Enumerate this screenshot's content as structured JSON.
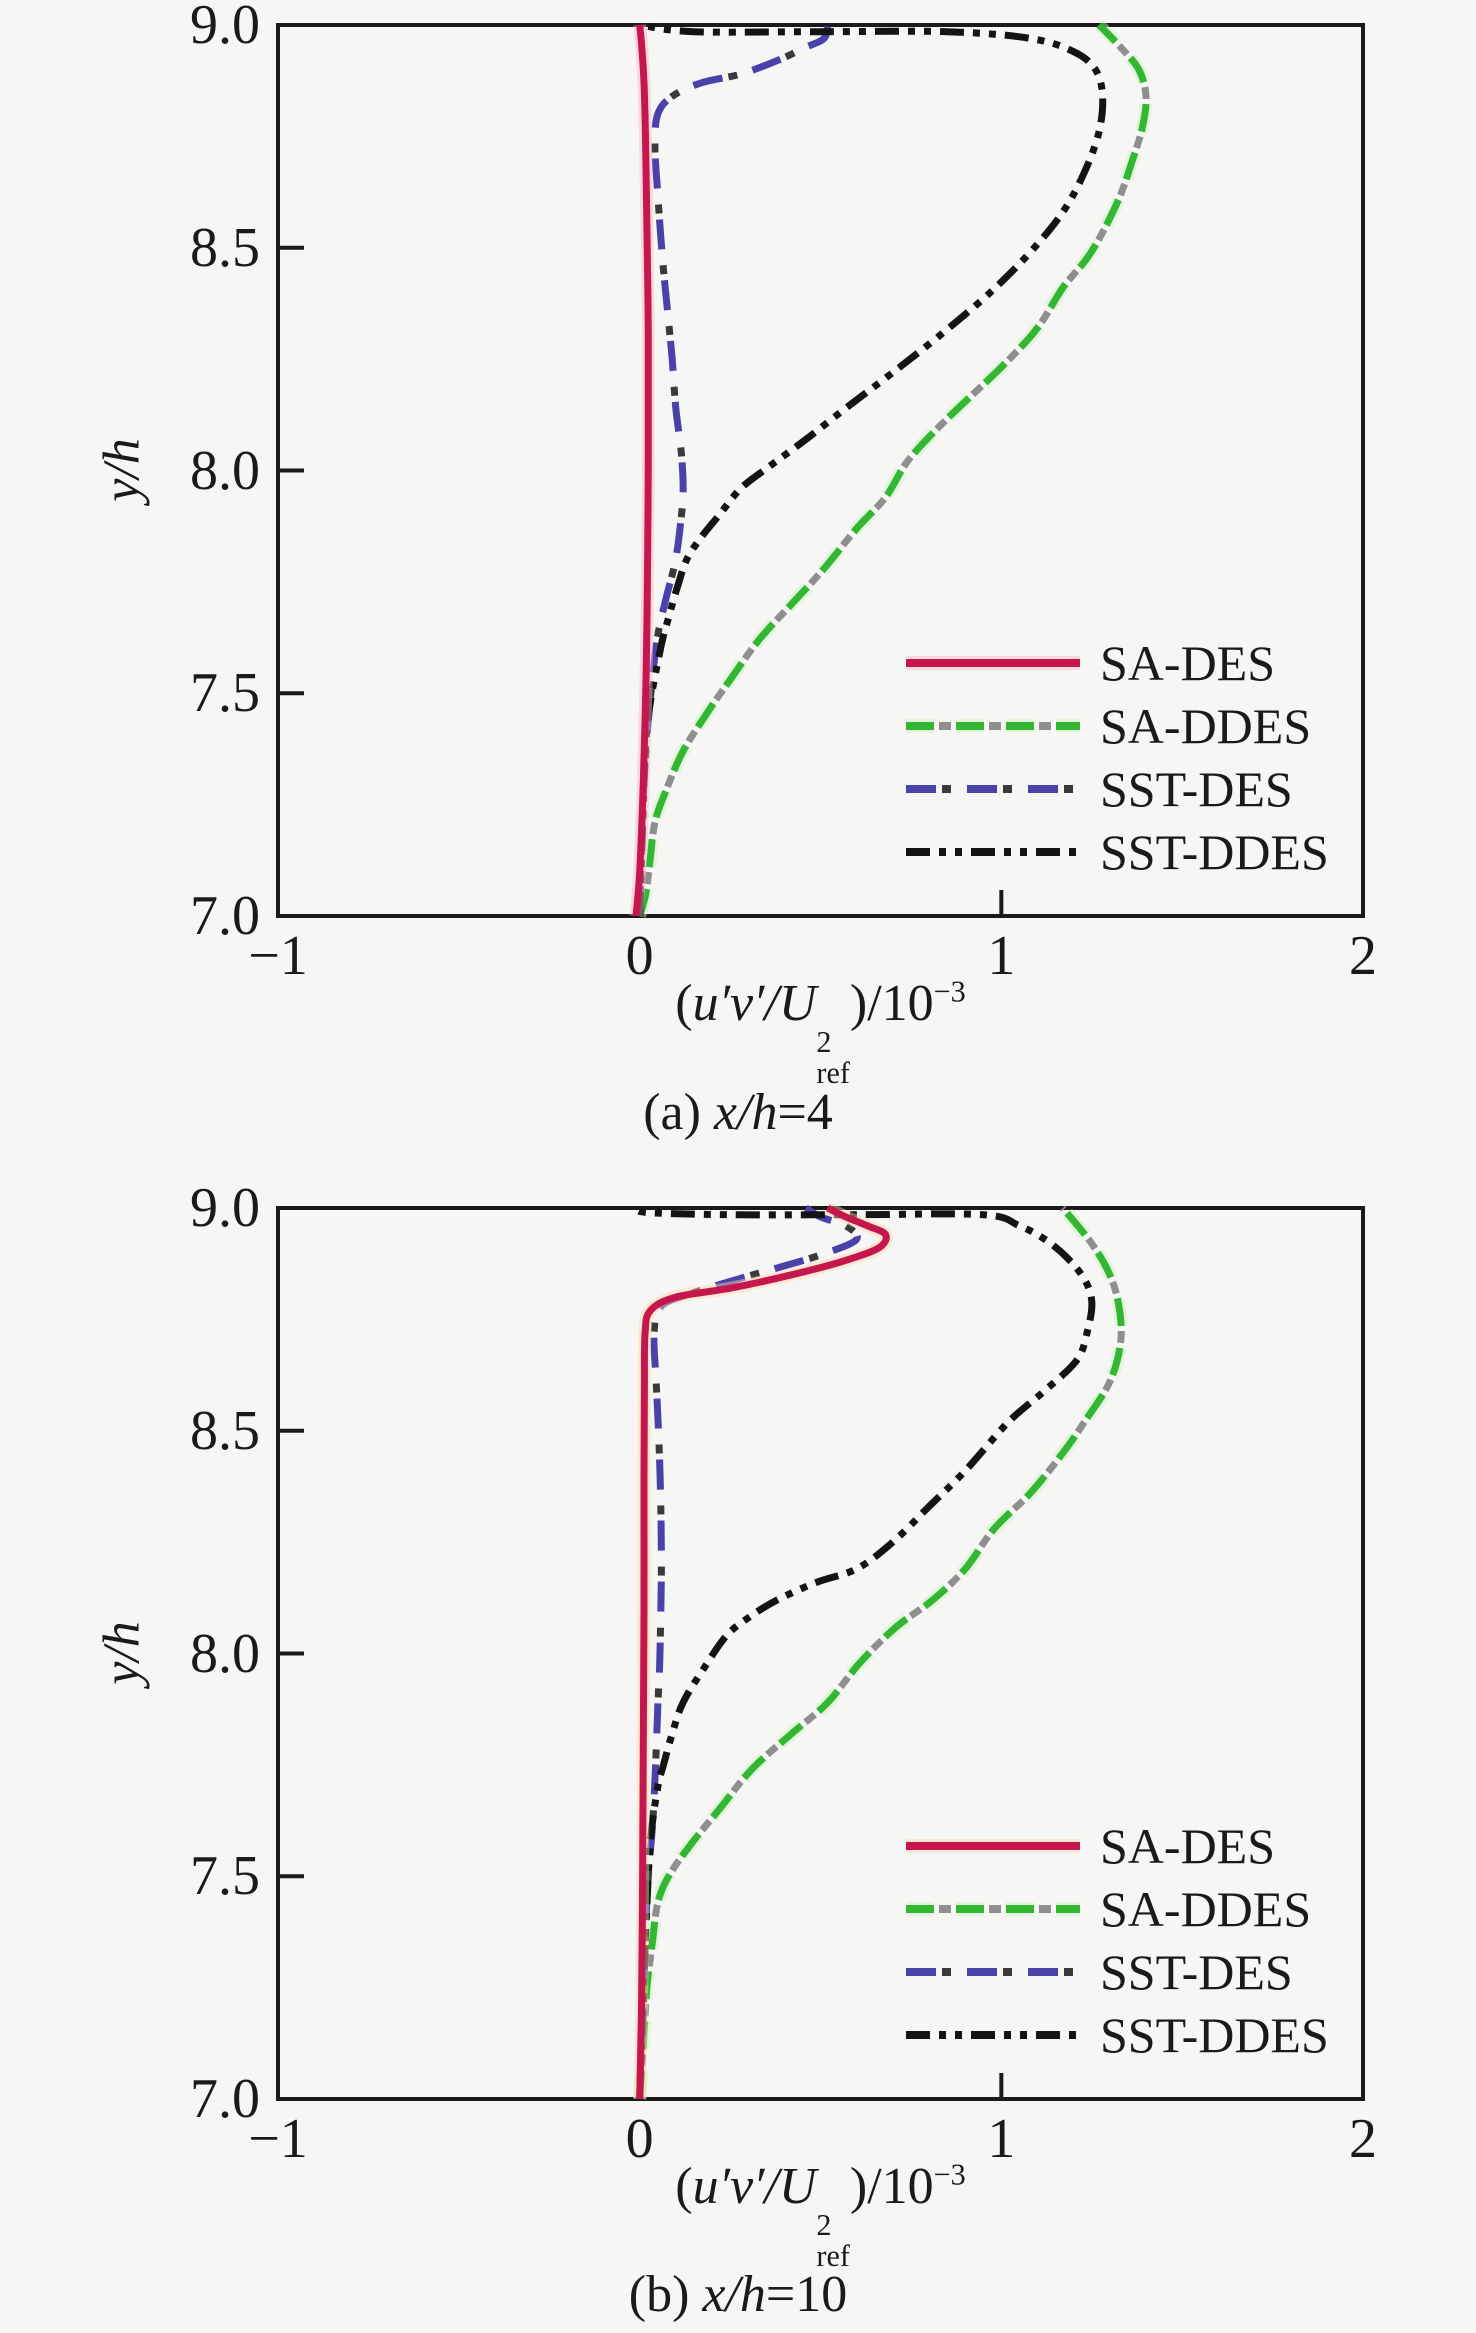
{
  "figure": {
    "background": "#f6f6f5",
    "frame_color": "#1a1a1a",
    "text_color": "#1a1a1a"
  },
  "axis_label_x": {
    "open": "(",
    "math": "u′v′/U",
    "sup": "2",
    "sub": "ref",
    "close": ")/10",
    "exp": "−3"
  },
  "chart_data": [
    {
      "type": "line",
      "panel": "a",
      "caption": {
        "index": "(a) ",
        "math": "x/h",
        "value": "=4"
      },
      "xlabel_plain": "(u′v′/U²ref)/10⁻³",
      "ylabel": "y/h",
      "xlim": [
        -1,
        2
      ],
      "ylim": [
        7.0,
        9.0
      ],
      "grid": false,
      "legend_position": "inside-right-middle",
      "xticks": [
        {
          "v": -1,
          "label": "−1"
        },
        {
          "v": 0,
          "label": "0"
        },
        {
          "v": 1,
          "label": "1"
        },
        {
          "v": 2,
          "label": "2"
        }
      ],
      "yticks": [
        {
          "v": 9.0,
          "label": "9.0"
        },
        {
          "v": 8.5,
          "label": "8.5"
        },
        {
          "v": 8.0,
          "label": "8.0"
        },
        {
          "v": 7.5,
          "label": "7.5"
        },
        {
          "v": 7.0,
          "label": "7.0"
        }
      ],
      "series": [
        {
          "key": "sa-des",
          "name": "SA-DES",
          "color": "#c5174e",
          "glow": "#ffb3cc",
          "style": "solid",
          "points": [
            [
              -0.01,
              7.0
            ],
            [
              0.0,
              7.1
            ],
            [
              0.01,
              7.3
            ],
            [
              0.018,
              7.55
            ],
            [
              0.022,
              7.8
            ],
            [
              0.024,
              8.05
            ],
            [
              0.024,
              8.3
            ],
            [
              0.02,
              8.55
            ],
            [
              0.016,
              8.75
            ],
            [
              0.012,
              8.87
            ],
            [
              0.006,
              8.95
            ],
            [
              0.0,
              9.0
            ]
          ]
        },
        {
          "key": "sa-ddes",
          "name": "SA-DDES",
          "color": "#33b733",
          "under": "#8f8f8f",
          "glow": "#cdf2c0",
          "style": "dashed",
          "points": [
            [
              0.0,
              7.0
            ],
            [
              0.017,
              7.05
            ],
            [
              0.028,
              7.12
            ],
            [
              0.042,
              7.21
            ],
            [
              0.072,
              7.28
            ],
            [
              0.12,
              7.37
            ],
            [
              0.19,
              7.46
            ],
            [
              0.25,
              7.53
            ],
            [
              0.33,
              7.62
            ],
            [
              0.42,
              7.7
            ],
            [
              0.51,
              7.78
            ],
            [
              0.6,
              7.87
            ],
            [
              0.68,
              7.94
            ],
            [
              0.74,
              8.02
            ],
            [
              0.83,
              8.1
            ],
            [
              0.92,
              8.17
            ],
            [
              1.01,
              8.24
            ],
            [
              1.1,
              8.32
            ],
            [
              1.17,
              8.41
            ],
            [
              1.24,
              8.48
            ],
            [
              1.29,
              8.55
            ],
            [
              1.33,
              8.62
            ],
            [
              1.36,
              8.69
            ],
            [
              1.39,
              8.77
            ],
            [
              1.4,
              8.84
            ],
            [
              1.38,
              8.9
            ],
            [
              1.33,
              8.95
            ],
            [
              1.27,
              9.0
            ]
          ]
        },
        {
          "key": "sst-des",
          "name": "SST-DES",
          "color": "#4a41ab",
          "under": "#3a3a3a",
          "style": "dashdot",
          "points": [
            [
              0.0,
              7.0
            ],
            [
              0.005,
              7.15
            ],
            [
              0.012,
              7.3
            ],
            [
              0.022,
              7.42
            ],
            [
              0.036,
              7.54
            ],
            [
              0.05,
              7.63
            ],
            [
              0.072,
              7.71
            ],
            [
              0.097,
              7.79
            ],
            [
              0.11,
              7.86
            ],
            [
              0.12,
              7.95
            ],
            [
              0.115,
              8.04
            ],
            [
              0.1,
              8.14
            ],
            [
              0.09,
              8.25
            ],
            [
              0.078,
              8.35
            ],
            [
              0.066,
              8.45
            ],
            [
              0.058,
              8.53
            ],
            [
              0.05,
              8.62
            ],
            [
              0.042,
              8.73
            ],
            [
              0.05,
              8.8
            ],
            [
              0.09,
              8.84
            ],
            [
              0.17,
              8.87
            ],
            [
              0.28,
              8.89
            ],
            [
              0.38,
              8.92
            ],
            [
              0.46,
              8.95
            ],
            [
              0.51,
              8.97
            ],
            [
              0.52,
              9.0
            ]
          ]
        },
        {
          "key": "sst-ddes",
          "name": "SST-DDES",
          "color": "#141414",
          "style": "dashdotdot",
          "points": [
            [
              0.0,
              7.0
            ],
            [
              0.008,
              7.2
            ],
            [
              0.02,
              7.42
            ],
            [
              0.055,
              7.59
            ],
            [
              0.08,
              7.67
            ],
            [
              0.105,
              7.74
            ],
            [
              0.13,
              7.8
            ],
            [
              0.17,
              7.85
            ],
            [
              0.22,
              7.9
            ],
            [
              0.28,
              7.96
            ],
            [
              0.36,
              8.01
            ],
            [
              0.46,
              8.07
            ],
            [
              0.57,
              8.14
            ],
            [
              0.7,
              8.22
            ],
            [
              0.84,
              8.31
            ],
            [
              0.97,
              8.4
            ],
            [
              1.08,
              8.49
            ],
            [
              1.17,
              8.58
            ],
            [
              1.23,
              8.67
            ],
            [
              1.27,
              8.76
            ],
            [
              1.28,
              8.84
            ],
            [
              1.26,
              8.9
            ],
            [
              1.2,
              8.94
            ],
            [
              1.08,
              8.97
            ],
            [
              0.85,
              8.985
            ],
            [
              0.5,
              8.985
            ],
            [
              0.15,
              8.985
            ],
            [
              0.0,
              9.0
            ]
          ]
        }
      ]
    },
    {
      "type": "line",
      "panel": "b",
      "caption": {
        "index": "(b) ",
        "math": "x/h",
        "value": "=10"
      },
      "xlabel_plain": "(u′v′/U²ref)/10⁻³",
      "ylabel": "y/h",
      "xlim": [
        -1,
        2
      ],
      "ylim": [
        7.0,
        9.0
      ],
      "grid": false,
      "legend_position": "inside-right-bottom",
      "xticks": [
        {
          "v": -1,
          "label": "−1"
        },
        {
          "v": 0,
          "label": "0"
        },
        {
          "v": 1,
          "label": "1"
        },
        {
          "v": 2,
          "label": "2"
        }
      ],
      "yticks": [
        {
          "v": 9.0,
          "label": "9.0"
        },
        {
          "v": 8.5,
          "label": "8.5"
        },
        {
          "v": 8.0,
          "label": "8.0"
        },
        {
          "v": 7.5,
          "label": "7.5"
        },
        {
          "v": 7.0,
          "label": "7.0"
        }
      ],
      "series": [
        {
          "key": "sa-des",
          "name": "SA-DES",
          "color": "#c5174e",
          "glow": "#ffd9a8",
          "style": "solid",
          "points": [
            [
              0.0,
              7.0
            ],
            [
              0.005,
              7.2
            ],
            [
              0.008,
              7.5
            ],
            [
              0.01,
              7.8
            ],
            [
              0.012,
              8.1
            ],
            [
              0.012,
              8.4
            ],
            [
              0.013,
              8.6
            ],
            [
              0.015,
              8.72
            ],
            [
              0.03,
              8.77
            ],
            [
              0.1,
              8.8
            ],
            [
              0.25,
              8.82
            ],
            [
              0.42,
              8.85
            ],
            [
              0.56,
              8.88
            ],
            [
              0.66,
              8.91
            ],
            [
              0.68,
              8.94
            ],
            [
              0.63,
              8.96
            ],
            [
              0.57,
              8.98
            ],
            [
              0.52,
              9.0
            ]
          ]
        },
        {
          "key": "sa-ddes",
          "name": "SA-DDES",
          "color": "#33b733",
          "under": "#8f8f8f",
          "glow": "#cdf2c0",
          "style": "dashed",
          "points": [
            [
              0.0,
              7.0
            ],
            [
              0.01,
              7.12
            ],
            [
              0.02,
              7.25
            ],
            [
              0.035,
              7.35
            ],
            [
              0.05,
              7.44
            ],
            [
              0.08,
              7.5
            ],
            [
              0.14,
              7.57
            ],
            [
              0.22,
              7.65
            ],
            [
              0.31,
              7.74
            ],
            [
              0.42,
              7.82
            ],
            [
              0.52,
              7.89
            ],
            [
              0.61,
              7.98
            ],
            [
              0.71,
              8.06
            ],
            [
              0.81,
              8.12
            ],
            [
              0.9,
              8.19
            ],
            [
              0.98,
              8.28
            ],
            [
              1.08,
              8.36
            ],
            [
              1.17,
              8.45
            ],
            [
              1.23,
              8.52
            ],
            [
              1.3,
              8.61
            ],
            [
              1.33,
              8.7
            ],
            [
              1.325,
              8.78
            ],
            [
              1.3,
              8.85
            ],
            [
              1.25,
              8.92
            ],
            [
              1.17,
              9.0
            ]
          ]
        },
        {
          "key": "sst-des",
          "name": "SST-DES",
          "color": "#4a41ab",
          "under": "#3a3a3a",
          "style": "dashdot",
          "points": [
            [
              0.0,
              7.0
            ],
            [
              0.01,
              7.2
            ],
            [
              0.02,
              7.45
            ],
            [
              0.036,
              7.62
            ],
            [
              0.044,
              7.75
            ],
            [
              0.05,
              7.88
            ],
            [
              0.055,
              7.97
            ],
            [
              0.058,
              8.07
            ],
            [
              0.06,
              8.2
            ],
            [
              0.058,
              8.35
            ],
            [
              0.052,
              8.5
            ],
            [
              0.045,
              8.62
            ],
            [
              0.04,
              8.72
            ],
            [
              0.06,
              8.78
            ],
            [
              0.15,
              8.81
            ],
            [
              0.27,
              8.84
            ],
            [
              0.4,
              8.87
            ],
            [
              0.52,
              8.9
            ],
            [
              0.6,
              8.93
            ],
            [
              0.57,
              8.96
            ],
            [
              0.5,
              8.98
            ],
            [
              0.46,
              9.0
            ]
          ]
        },
        {
          "key": "sst-ddes",
          "name": "SST-DDES",
          "color": "#141414",
          "style": "dashdotdot",
          "points": [
            [
              0.0,
              7.0
            ],
            [
              0.008,
              7.2
            ],
            [
              0.018,
              7.4
            ],
            [
              0.03,
              7.58
            ],
            [
              0.05,
              7.7
            ],
            [
              0.066,
              7.75
            ],
            [
              0.09,
              7.82
            ],
            [
              0.12,
              7.89
            ],
            [
              0.18,
              7.97
            ],
            [
              0.24,
              8.04
            ],
            [
              0.3,
              8.08
            ],
            [
              0.38,
              8.12
            ],
            [
              0.49,
              8.16
            ],
            [
              0.6,
              8.19
            ],
            [
              0.7,
              8.25
            ],
            [
              0.8,
              8.33
            ],
            [
              0.9,
              8.41
            ],
            [
              1.02,
              8.52
            ],
            [
              1.12,
              8.59
            ],
            [
              1.21,
              8.66
            ],
            [
              1.24,
              8.73
            ],
            [
              1.25,
              8.79
            ],
            [
              1.23,
              8.84
            ],
            [
              1.18,
              8.89
            ],
            [
              1.12,
              8.93
            ],
            [
              1.05,
              8.96
            ],
            [
              0.95,
              8.985
            ],
            [
              0.6,
              8.985
            ],
            [
              0.25,
              8.985
            ],
            [
              0.02,
              8.99
            ],
            [
              0.0,
              9.0
            ]
          ]
        }
      ]
    }
  ]
}
